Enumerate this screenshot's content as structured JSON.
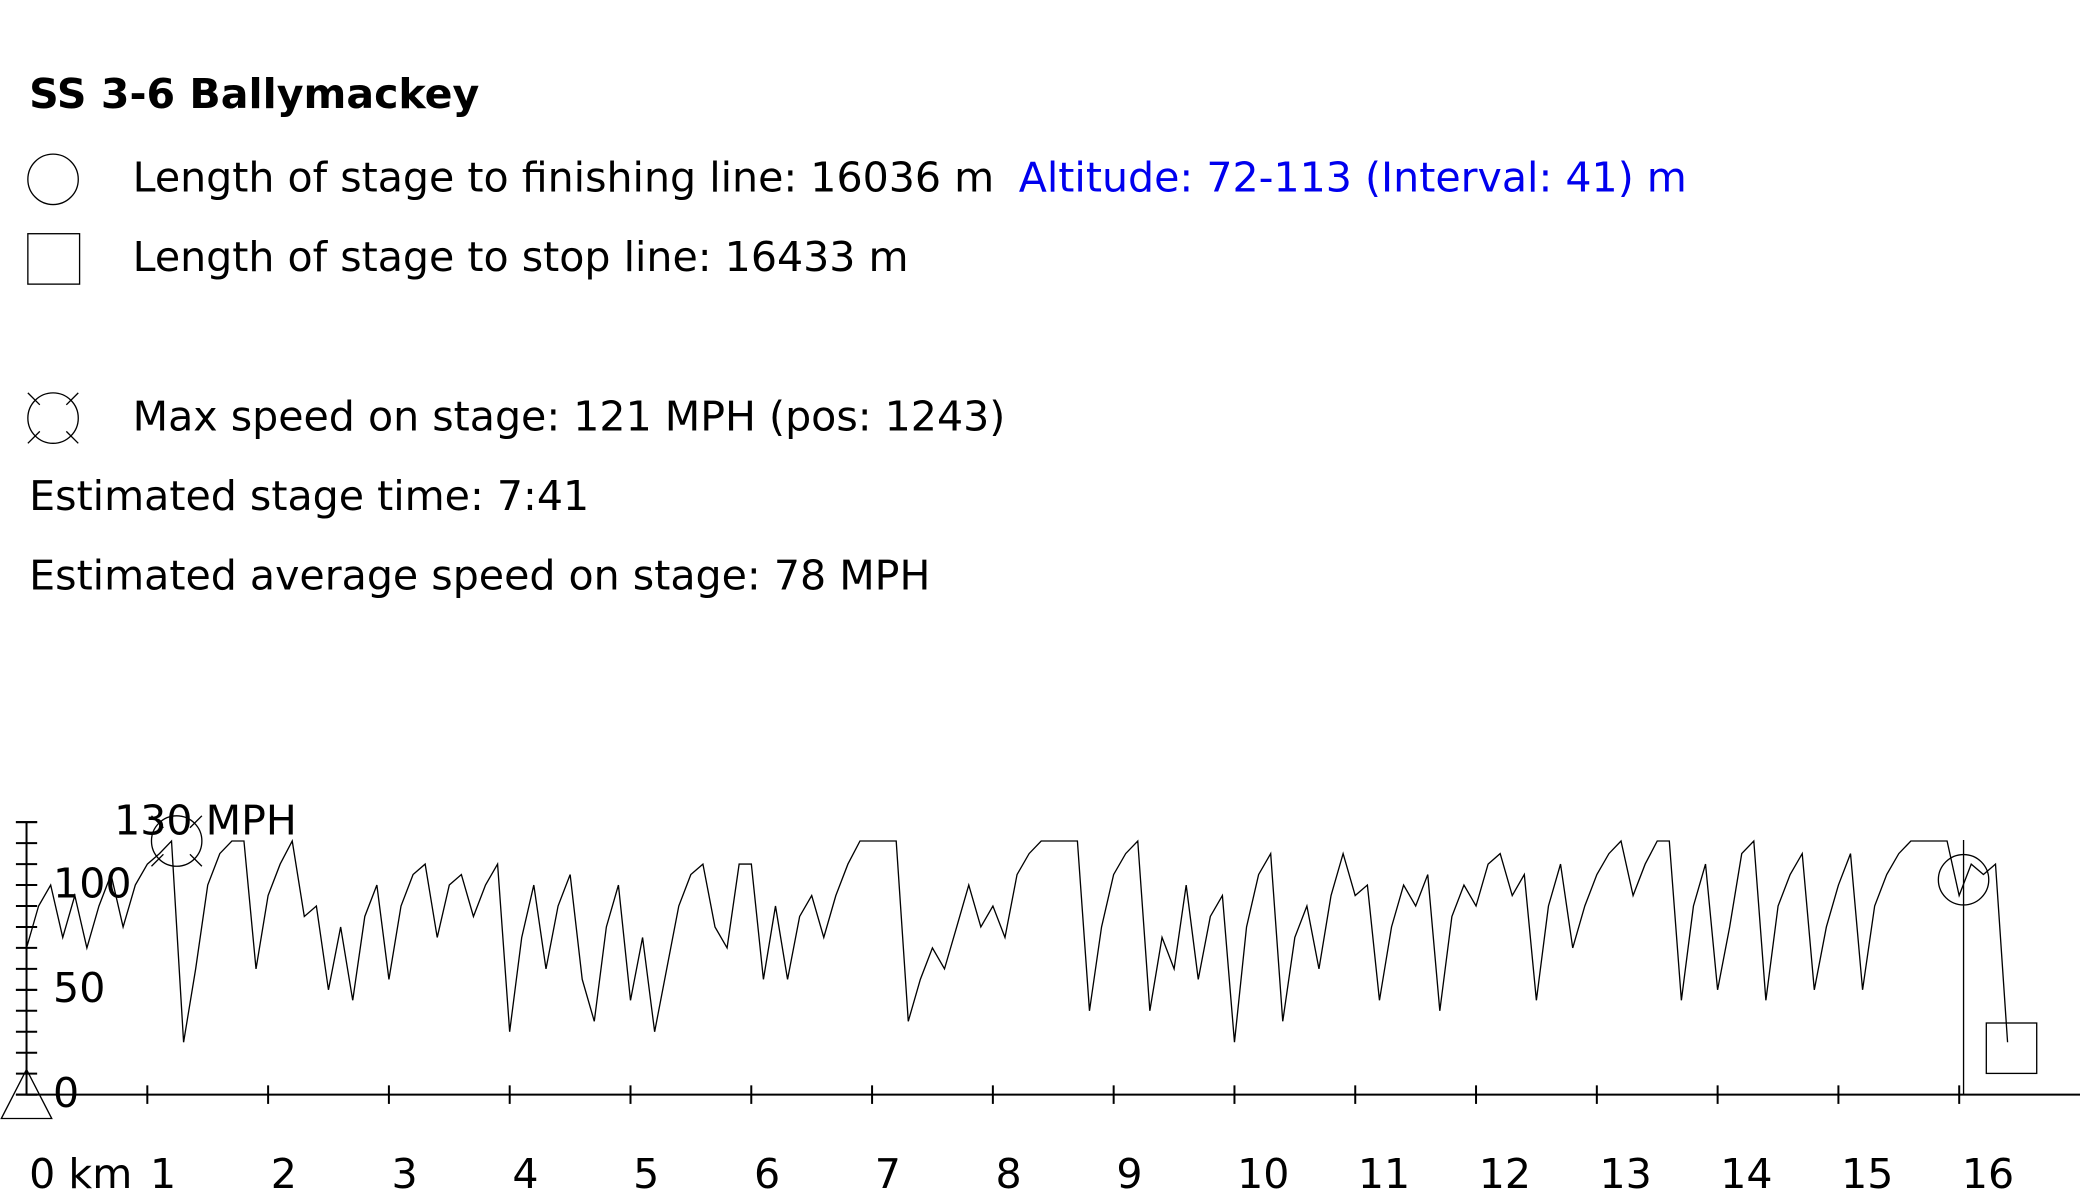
{
  "header": {
    "title": "SS 3-6 Ballymackey",
    "finish_text": "Length of stage to finishing line: 16036 m",
    "altitude_text": "Altitude: 72-113 (Interval: 41) m",
    "stop_text": "Length of stage to stop line: 16433 m",
    "max_speed_text": "Max speed on stage: 121 MPH (pos: 1243)",
    "time_text": "Estimated stage time: 7:41",
    "avg_text": "Estimated average speed on stage: 78 MPH"
  },
  "chart_data": {
    "type": "line",
    "xlim": [
      0,
      17
    ],
    "ylim": [
      0,
      130
    ],
    "xticks": [
      {
        "value": 0,
        "label": "0 km"
      },
      1,
      2,
      3,
      4,
      5,
      6,
      7,
      8,
      9,
      10,
      11,
      12,
      13,
      14,
      15,
      16
    ],
    "yticks": [
      0,
      50,
      100,
      {
        "value": 130,
        "label": "130 MPH"
      }
    ],
    "yminorticks": [
      0,
      10,
      20,
      30,
      40,
      50,
      60,
      70,
      80,
      90,
      100,
      110,
      120,
      130
    ],
    "color": "#000000",
    "max_speed_pos": 1.243,
    "max_speed": 121,
    "finish_pos": 16.036,
    "stop_pos": 16.433,
    "x": [
      0,
      0.1,
      0.2,
      0.3,
      0.4,
      0.5,
      0.6,
      0.7,
      0.8,
      0.9,
      1,
      1.1,
      1.2,
      1.3,
      1.4,
      1.5,
      1.6,
      1.7,
      1.8,
      1.9,
      2,
      2.1,
      2.2,
      2.3,
      2.4,
      2.5,
      2.6,
      2.7,
      2.8,
      2.9,
      3,
      3.1,
      3.2,
      3.3,
      3.4,
      3.5,
      3.6,
      3.7,
      3.8,
      3.9,
      4,
      4.1,
      4.2,
      4.3,
      4.4,
      4.5,
      4.6,
      4.7,
      4.8,
      4.9,
      5,
      5.1,
      5.2,
      5.3,
      5.4,
      5.5,
      5.6,
      5.7,
      5.8,
      5.9,
      6,
      6.1,
      6.2,
      6.3,
      6.4,
      6.5,
      6.6,
      6.7,
      6.8,
      6.9,
      7,
      7.1,
      7.2,
      7.3,
      7.4,
      7.5,
      7.6,
      7.7,
      7.8,
      7.9,
      8,
      8.1,
      8.2,
      8.3,
      8.4,
      8.5,
      8.6,
      8.7,
      8.8,
      8.9,
      9,
      9.1,
      9.2,
      9.3,
      9.4,
      9.5,
      9.6,
      9.7,
      9.8,
      9.9,
      10,
      10.1,
      10.2,
      10.3,
      10.4,
      10.5,
      10.6,
      10.7,
      10.8,
      10.9,
      11,
      11.1,
      11.2,
      11.3,
      11.4,
      11.5,
      11.6,
      11.7,
      11.8,
      11.9,
      12,
      12.1,
      12.2,
      12.3,
      12.4,
      12.5,
      12.6,
      12.7,
      12.8,
      12.9,
      13,
      13.1,
      13.2,
      13.3,
      13.4,
      13.5,
      13.6,
      13.7,
      13.8,
      13.9,
      14,
      14.1,
      14.2,
      14.3,
      14.4,
      14.5,
      14.6,
      14.7,
      14.8,
      14.9,
      15,
      15.1,
      15.2,
      15.3,
      15.4,
      15.5,
      15.6,
      15.7,
      15.8,
      15.9,
      16,
      16.1,
      16.2,
      16.3,
      16.4
    ],
    "values": [
      70,
      90,
      100,
      75,
      95,
      70,
      90,
      105,
      80,
      100,
      110,
      115,
      121,
      25,
      60,
      100,
      115,
      121,
      121,
      60,
      95,
      110,
      121,
      85,
      90,
      50,
      80,
      45,
      85,
      100,
      55,
      90,
      105,
      110,
      75,
      100,
      105,
      85,
      100,
      110,
      30,
      75,
      100,
      60,
      90,
      105,
      55,
      35,
      80,
      100,
      45,
      75,
      30,
      60,
      90,
      105,
      110,
      80,
      70,
      110,
      110,
      55,
      90,
      55,
      85,
      95,
      75,
      95,
      110,
      121,
      121,
      121,
      121,
      35,
      55,
      70,
      60,
      80,
      100,
      80,
      90,
      75,
      105,
      115,
      121,
      121,
      121,
      121,
      40,
      80,
      105,
      115,
      121,
      40,
      75,
      60,
      100,
      55,
      85,
      95,
      25,
      80,
      105,
      115,
      35,
      75,
      90,
      60,
      95,
      115,
      95,
      100,
      45,
      80,
      100,
      90,
      105,
      40,
      85,
      100,
      90,
      110,
      115,
      95,
      105,
      45,
      90,
      110,
      70,
      90,
      105,
      115,
      121,
      95,
      110,
      121,
      121,
      45,
      90,
      110,
      50,
      80,
      115,
      121,
      45,
      90,
      105,
      115,
      50,
      80,
      100,
      115,
      50,
      90,
      105,
      115,
      121,
      121,
      121,
      121,
      95,
      110,
      105,
      110,
      25
    ]
  }
}
